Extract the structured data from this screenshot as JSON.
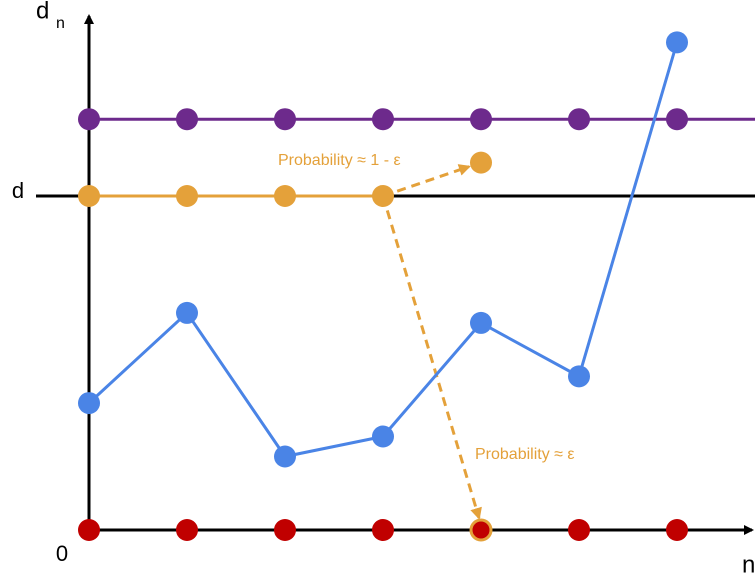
{
  "chart_data": {
    "type": "line",
    "ylabel": "d",
    "ylabel_subscript": "n",
    "xlabel": "n",
    "x": [
      0,
      1,
      2,
      3,
      4,
      5,
      6
    ],
    "xlim": [
      0,
      6.75
    ],
    "ylim": [
      0,
      1.53
    ],
    "yticks": [
      {
        "value": 0,
        "label": "0"
      },
      {
        "value": 1,
        "label": "d"
      }
    ],
    "series": [
      {
        "color": "#6d2a8c",
        "line": true,
        "values": [
          1.23,
          1.23,
          1.23,
          1.23,
          1.23,
          1.23,
          1.23
        ]
      },
      {
        "color": "#e4a13a",
        "line": true,
        "values": [
          1,
          1,
          1,
          1,
          null,
          null,
          null
        ]
      },
      {
        "color": "#e4a13a",
        "line": false,
        "values": [
          null,
          null,
          null,
          null,
          1.1,
          null,
          null
        ]
      },
      {
        "color": "#4a84e6",
        "line": true,
        "values": [
          0.38,
          0.65,
          0.22,
          0.28,
          0.62,
          0.46,
          1.46
        ]
      },
      {
        "color": "#c00000",
        "line": false,
        "values": [
          0,
          0,
          0,
          0,
          0,
          0,
          0
        ]
      }
    ],
    "annotations": [
      "Probability ≈ 1 - ε",
      "Probability ≈ ε"
    ]
  }
}
